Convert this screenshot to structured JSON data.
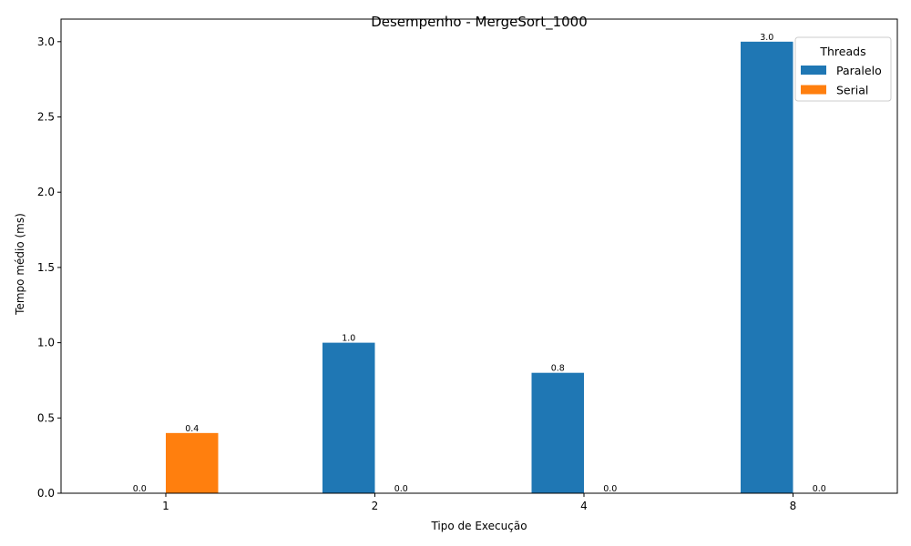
{
  "chart_data": {
    "type": "bar",
    "title": "Desempenho - MergeSort_1000",
    "xlabel": "Tipo de Execução",
    "ylabel": "Tempo médio (ms)",
    "categories": [
      "1",
      "2",
      "4",
      "8"
    ],
    "series": [
      {
        "name": "Paralelo",
        "color": "#1f77b4",
        "values": [
          0.0,
          1.0,
          0.8,
          3.0
        ],
        "labels": [
          "0.0",
          "1.0",
          "0.8",
          "3.0"
        ]
      },
      {
        "name": "Serial",
        "color": "#ff7f0e",
        "values": [
          0.4,
          0.0,
          0.0,
          0.0
        ],
        "labels": [
          "0.4",
          "0.0",
          "0.0",
          "0.0"
        ]
      }
    ],
    "ylim": [
      0,
      3.15
    ],
    "yticks": [
      0.0,
      0.5,
      1.0,
      1.5,
      2.0,
      2.5,
      3.0
    ],
    "ytick_labels": [
      "0.0",
      "0.5",
      "1.0",
      "1.5",
      "2.0",
      "2.5",
      "3.0"
    ],
    "legend": {
      "title": "Threads",
      "position": "top-right"
    },
    "grid": false
  }
}
